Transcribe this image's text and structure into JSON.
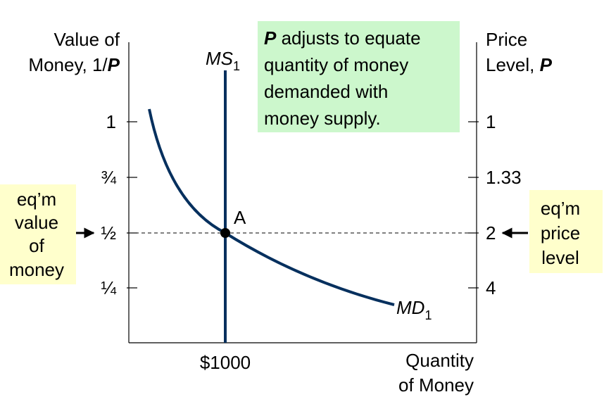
{
  "left_axis": {
    "title_line1": "Value of",
    "title_line2": "Money, 1/",
    "title_var": "P",
    "ticks": [
      "1",
      "¾",
      "½",
      "¼"
    ]
  },
  "right_axis": {
    "title_line1": "Price",
    "title_line2": "Level, ",
    "title_var": "P",
    "ticks": [
      "1",
      "1.33",
      "2",
      "4"
    ]
  },
  "x_axis": {
    "tick": "$1000",
    "title": [
      "Quantity",
      "of Money"
    ]
  },
  "curves": {
    "supply": {
      "name": "MS",
      "subscript": "1"
    },
    "demand": {
      "name": "MD",
      "subscript": "1"
    }
  },
  "point": "A",
  "callout": {
    "var": "P",
    "lines": [
      " adjusts to equate",
      "quantity of money",
      "demanded with",
      "money supply."
    ]
  },
  "left_note": [
    "eq’m",
    "value",
    "of",
    "money"
  ],
  "right_note": [
    "eq’m",
    "price",
    "level"
  ]
}
